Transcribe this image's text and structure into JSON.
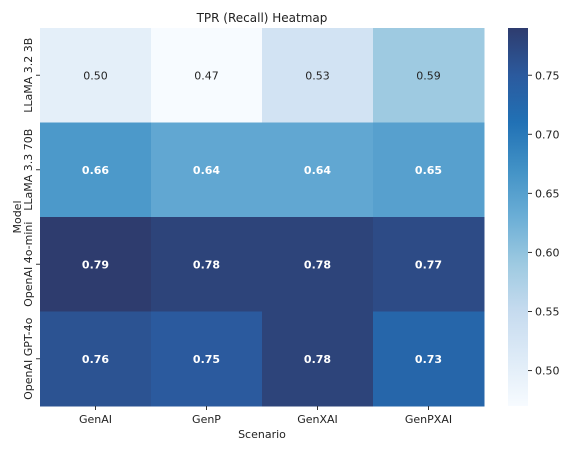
{
  "chart_data": {
    "type": "heatmap",
    "title": "TPR (Recall) Heatmap",
    "xlabel": "Scenario",
    "ylabel": "Model",
    "x_categories": [
      "GenAI",
      "GenP",
      "GenXAI",
      "GenPXAI"
    ],
    "y_categories": [
      "LLaMA 3.2 3B",
      "LLaMA 3.3 70B",
      "OpenAI 4o-mini",
      "OpenAI GPT-4o"
    ],
    "values": [
      [
        0.5,
        0.47,
        0.53,
        0.59
      ],
      [
        0.66,
        0.64,
        0.64,
        0.65
      ],
      [
        0.79,
        0.78,
        0.78,
        0.77
      ],
      [
        0.76,
        0.75,
        0.78,
        0.73
      ]
    ],
    "labels": [
      [
        "0.50",
        "0.47",
        "0.53",
        "0.59"
      ],
      [
        "0.66",
        "0.64",
        "0.64",
        "0.65"
      ],
      [
        "0.79",
        "0.78",
        "0.78",
        "0.77"
      ],
      [
        "0.76",
        "0.75",
        "0.78",
        "0.73"
      ]
    ],
    "colorbar": {
      "vmin": 0.47,
      "vmax": 0.79,
      "ticks": [
        "0.50",
        "0.55",
        "0.60",
        "0.65",
        "0.70",
        "0.75"
      ],
      "colormap": "Blues"
    }
  }
}
